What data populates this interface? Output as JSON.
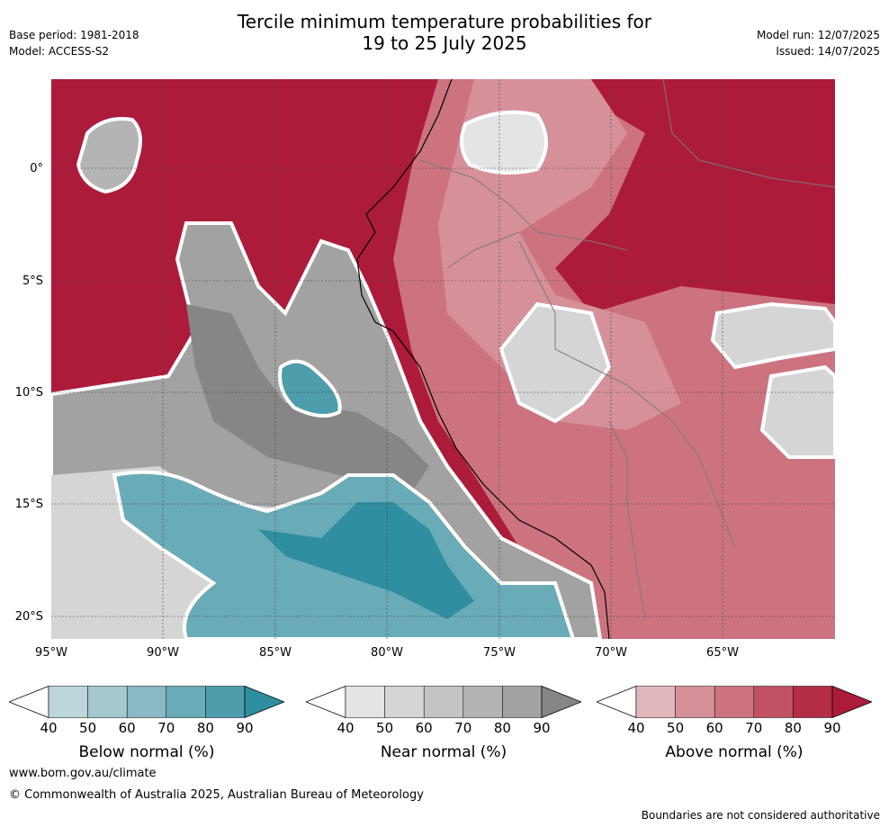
{
  "header": {
    "title_line1": "Tercile minimum temperature probabilities for",
    "title_line2": "19 to 25 July 2025",
    "base_period": "Base period: 1981-2018",
    "model": "Model: ACCESS-S2",
    "model_run": "Model run: 12/07/2025",
    "issued": "Issued: 14/07/2025"
  },
  "map": {
    "lat_labels": [
      "0°",
      "5°S",
      "10°S",
      "15°S",
      "20°S"
    ],
    "lon_labels": [
      "95°W",
      "90°W",
      "85°W",
      "80°W",
      "75°W",
      "70°W",
      "65°W"
    ]
  },
  "colorbars": [
    {
      "label": "Below normal (%)",
      "ticks": [
        "40",
        "50",
        "60",
        "70",
        "80",
        "90"
      ],
      "colors": [
        "#ffffff",
        "#bdd6dc",
        "#a5c8cf",
        "#88b9c4",
        "#6aabb8",
        "#4d9dad",
        "#2f8fa1"
      ]
    },
    {
      "label": "Near normal (%)",
      "ticks": [
        "40",
        "50",
        "60",
        "70",
        "80",
        "90"
      ],
      "colors": [
        "#ffffff",
        "#e4e4e4",
        "#d5d5d5",
        "#c4c4c4",
        "#b4b4b4",
        "#a2a2a2",
        "#868686"
      ]
    },
    {
      "label": "Above normal (%)",
      "ticks": [
        "40",
        "50",
        "60",
        "70",
        "80",
        "90"
      ],
      "colors": [
        "#ffffff",
        "#e2b7bc",
        "#d69099",
        "#cd7380",
        "#c25263",
        "#b52d45",
        "#ad1b3b"
      ]
    }
  ],
  "footer": {
    "url": "www.bom.gov.au/climate",
    "copyright": "© Commonwealth of Australia 2025, Australian Bureau of Meteorology",
    "disclaimer": "Boundaries are not considered authoritative"
  }
}
